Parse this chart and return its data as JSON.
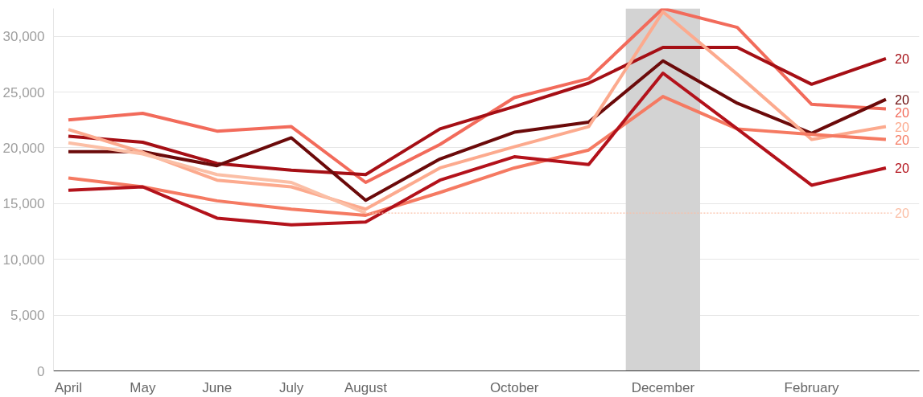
{
  "chart_data": {
    "type": "line",
    "categories": [
      "April",
      "May",
      "June",
      "July",
      "August",
      null,
      "October",
      null,
      "December",
      null,
      "February",
      null
    ],
    "series": [
      {
        "name": "20",
        "color": "#f26b5b",
        "values": [
          22500,
          23100,
          21500,
          21900,
          16900,
          20300,
          24500,
          26200,
          32500,
          30800,
          23900,
          23500
        ]
      },
      {
        "name": "20",
        "color": "#a50f15",
        "values": [
          21050,
          20500,
          18600,
          18000,
          17600,
          21700,
          23700,
          25800,
          29000,
          29000,
          25700,
          28000
        ]
      },
      {
        "name": "20",
        "color": "#6b0a0a",
        "values": [
          19650,
          19650,
          18400,
          20900,
          15300,
          19000,
          21400,
          22300,
          27800,
          24000,
          21300,
          24350
        ]
      },
      {
        "name": "20",
        "color": "#fcaa8e",
        "values": [
          21650,
          19600,
          17100,
          16500,
          14500,
          18200,
          20100,
          21900,
          32200,
          26600,
          20750,
          21900
        ]
      },
      {
        "name": "20",
        "color": "#fbbfa6",
        "values": [
          20450,
          19450,
          17600,
          16900,
          14150,
          null,
          null,
          null,
          null,
          null,
          null,
          null
        ]
      },
      {
        "name": "20",
        "color": "#f57a62",
        "values": [
          17300,
          16500,
          15250,
          14500,
          13950,
          16000,
          18200,
          19800,
          24600,
          21700,
          21200,
          20750
        ]
      },
      {
        "name": "20",
        "color": "#b3121b",
        "values": [
          16200,
          16500,
          13700,
          13100,
          13350,
          17100,
          19200,
          18500,
          26700,
          21700,
          16650,
          18200
        ]
      }
    ],
    "ylim": [
      0,
      32500
    ],
    "yticks": [
      0,
      {
        "value": 5000,
        "label": "5,000"
      },
      {
        "value": 10000,
        "label": "10,000"
      },
      {
        "value": 15000,
        "label": "15,000"
      },
      {
        "value": 20000,
        "label": "20,000"
      },
      {
        "value": 25000,
        "label": "25,000"
      },
      {
        "value": 30000,
        "label": "30,000"
      }
    ],
    "bands": [
      {
        "axis": "x",
        "from": "December",
        "to": "December",
        "color": "#d3d3d3"
      }
    ],
    "grid": "y",
    "marker": "none",
    "line_style": "solid"
  }
}
